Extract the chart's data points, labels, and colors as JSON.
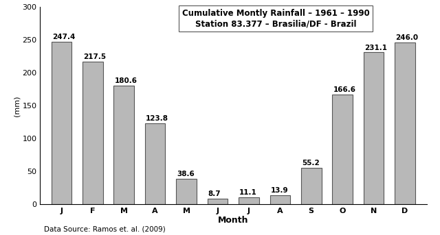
{
  "months": [
    "J",
    "F",
    "M",
    "A",
    "M",
    "J",
    "J",
    "A",
    "S",
    "O",
    "N",
    "D"
  ],
  "values": [
    247.4,
    217.5,
    180.6,
    123.8,
    38.6,
    8.7,
    11.1,
    13.9,
    55.2,
    166.6,
    231.1,
    246.0
  ],
  "bar_color": "#b8b8b8",
  "bar_edge_color": "#555555",
  "ylim": [
    0,
    300
  ],
  "yticks": [
    0,
    50,
    100,
    150,
    200,
    250,
    300
  ],
  "ylabel": "(mm)",
  "xlabel": "Month",
  "title_line1": "Cumulative Montly Rainfall – 1961 – 1990",
  "title_line2": "Station 83.377 – Brasilia/DF - Brazil",
  "data_source": "Data Source: Ramos et. al. (2009)",
  "background_color": "#ffffff",
  "title_fontsize": 8.5,
  "tick_fontsize": 8,
  "value_fontsize": 7.5,
  "ylabel_fontsize": 8,
  "xlabel_fontsize": 9,
  "datasource_fontsize": 7.5
}
